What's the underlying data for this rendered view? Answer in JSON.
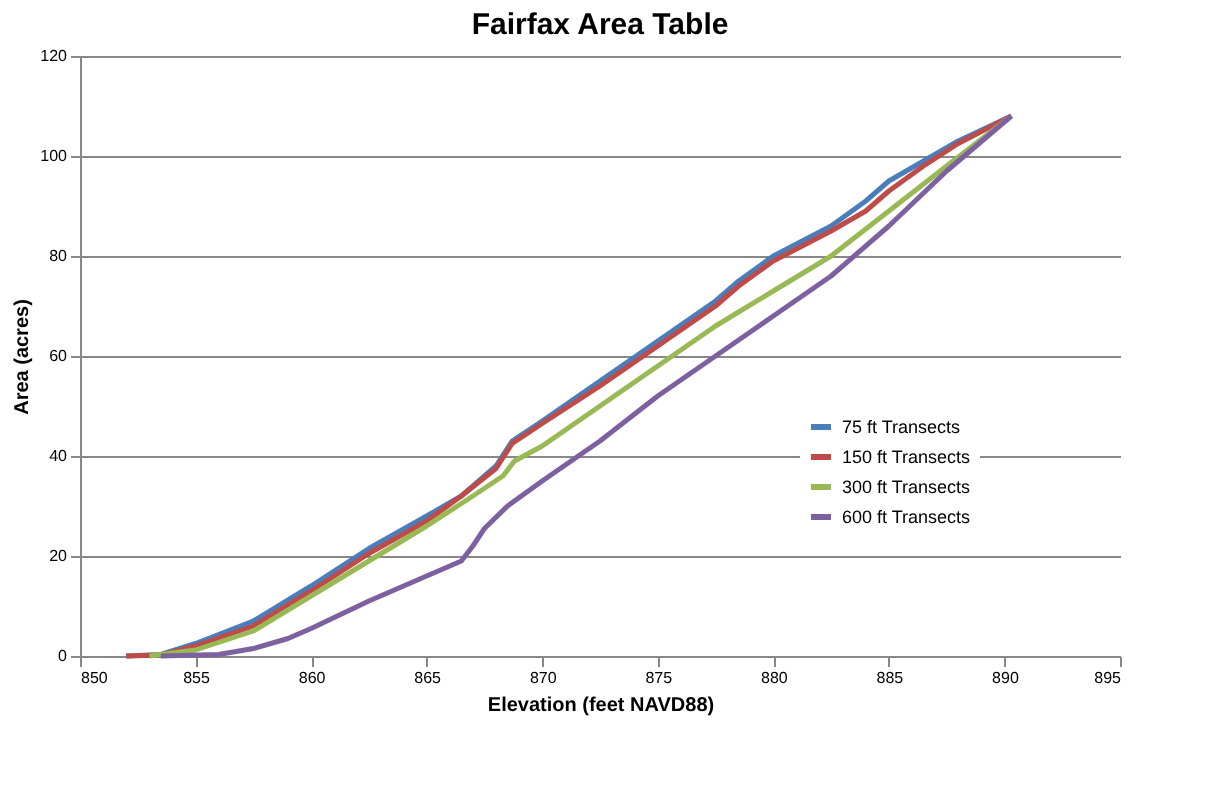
{
  "chart_data": {
    "type": "line",
    "title": "Fairfax Area Table",
    "xlabel": "Elevation (feet NAVD88)",
    "ylabel": "Area (acres)",
    "xlim": [
      850,
      895
    ],
    "xticks": [
      850,
      855,
      860,
      865,
      870,
      875,
      880,
      885,
      890,
      895
    ],
    "ylim": [
      0,
      120
    ],
    "yticks": [
      0,
      20,
      40,
      60,
      80,
      100,
      120
    ],
    "grid": "y",
    "legend": "right",
    "marker": "none",
    "line_style": "solid",
    "series": [
      {
        "name": "75 ft Transects",
        "color": "#4a7ebb",
        "x": [
          852,
          853.5,
          855,
          857.5,
          860,
          862.5,
          865,
          866.5,
          868,
          868.7,
          870,
          872.5,
          875,
          877.5,
          878.5,
          880,
          882.5,
          884,
          885,
          886.5,
          888,
          890.3
        ],
        "values": [
          0,
          0.3,
          2.5,
          7,
          14,
          21.5,
          28,
          32,
          38,
          43,
          47,
          55,
          63,
          71,
          75,
          80,
          86,
          91,
          95,
          99,
          103,
          108
        ]
      },
      {
        "name": "150 ft Transects",
        "color": "#be4b48",
        "x": [
          852,
          853.5,
          855,
          857.5,
          860,
          862.5,
          865,
          866.5,
          868,
          868.7,
          870,
          872.5,
          875,
          877.5,
          878.5,
          880,
          882.5,
          884,
          885,
          886.5,
          888,
          890.3
        ],
        "values": [
          0,
          0.2,
          2,
          6,
          13,
          20.5,
          27,
          32,
          37.5,
          42.5,
          46.5,
          54,
          62,
          70,
          74,
          79,
          85,
          89,
          93,
          98,
          102.5,
          108
        ]
      },
      {
        "name": "300 ft Transects",
        "color": "#98b954",
        "x": [
          853,
          855,
          857.5,
          860,
          862.5,
          865,
          867,
          868.3,
          868.8,
          870,
          872.5,
          875,
          877.5,
          880,
          882.5,
          885,
          887.5,
          890.3
        ],
        "values": [
          0,
          1.2,
          5,
          12,
          19,
          26,
          32,
          36,
          39,
          42,
          50,
          58,
          66,
          73,
          80,
          89,
          98,
          108
        ]
      },
      {
        "name": "600 ft Transects",
        "color": "#7d60a0",
        "x": [
          853.5,
          856,
          857.5,
          859,
          860,
          862.5,
          865,
          866.5,
          867,
          867.5,
          868.5,
          870,
          872.5,
          875,
          877.5,
          880,
          882.5,
          885,
          887.5,
          890.3
        ],
        "values": [
          0,
          0.3,
          1.5,
          3.5,
          5.5,
          11,
          16,
          19,
          22,
          25.5,
          30,
          35,
          43,
          52,
          60,
          68,
          76,
          86,
          97,
          108
        ]
      }
    ]
  }
}
